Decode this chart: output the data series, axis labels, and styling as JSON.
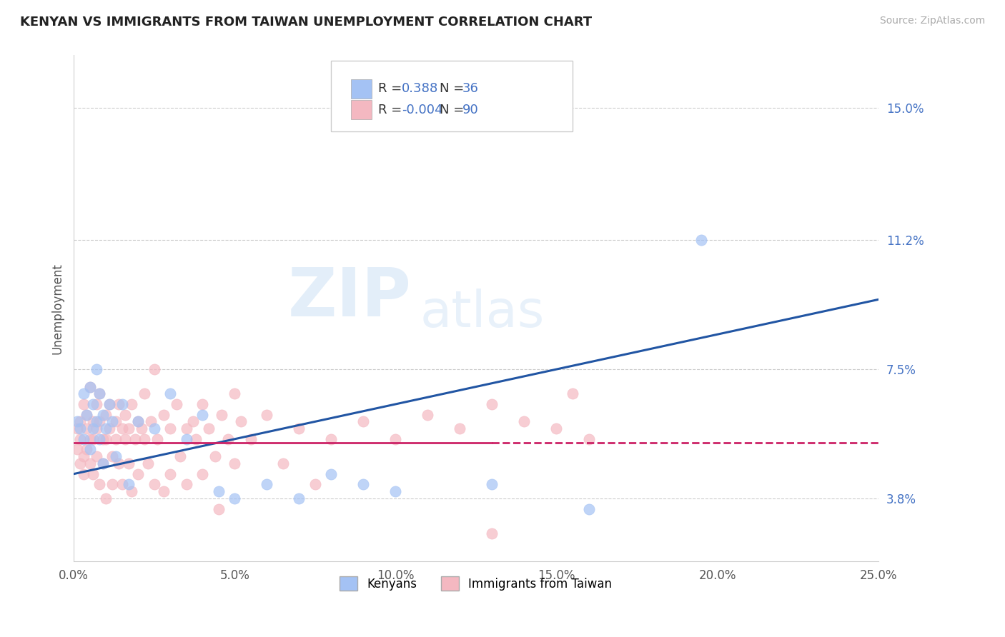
{
  "title": "KENYAN VS IMMIGRANTS FROM TAIWAN UNEMPLOYMENT CORRELATION CHART",
  "source": "Source: ZipAtlas.com",
  "ylabel": "Unemployment",
  "xlim": [
    0.0,
    0.25
  ],
  "ylim": [
    0.02,
    0.165
  ],
  "yticks": [
    0.038,
    0.075,
    0.112,
    0.15
  ],
  "ytick_labels": [
    "3.8%",
    "7.5%",
    "11.2%",
    "15.0%"
  ],
  "xticks": [
    0.0,
    0.05,
    0.1,
    0.15,
    0.2,
    0.25
  ],
  "xtick_labels": [
    "0.0%",
    "5.0%",
    "10.0%",
    "15.0%",
    "20.0%",
    "25.0%"
  ],
  "bottom_legend": [
    "Kenyans",
    "Immigrants from Taiwan"
  ],
  "blue_scatter_color": "#a4c2f4",
  "pink_scatter_color": "#f4b8c1",
  "trend_blue_color": "#2155a3",
  "trend_pink_color": "#cc2266",
  "grid_color": "#cccccc",
  "tick_color": "#4472c4",
  "title_color": "#222222",
  "legend_text_color": "#4472c4",
  "legend_R_color": "#222222",
  "blue_line_start_y": 0.045,
  "blue_line_end_y": 0.095,
  "pink_line_y": 0.054,
  "kenyan_points": [
    [
      0.001,
      0.06
    ],
    [
      0.002,
      0.058
    ],
    [
      0.003,
      0.055
    ],
    [
      0.003,
      0.068
    ],
    [
      0.004,
      0.062
    ],
    [
      0.005,
      0.07
    ],
    [
      0.005,
      0.052
    ],
    [
      0.006,
      0.058
    ],
    [
      0.006,
      0.065
    ],
    [
      0.007,
      0.06
    ],
    [
      0.007,
      0.075
    ],
    [
      0.008,
      0.055
    ],
    [
      0.008,
      0.068
    ],
    [
      0.009,
      0.062
    ],
    [
      0.009,
      0.048
    ],
    [
      0.01,
      0.058
    ],
    [
      0.011,
      0.065
    ],
    [
      0.012,
      0.06
    ],
    [
      0.013,
      0.05
    ],
    [
      0.015,
      0.065
    ],
    [
      0.017,
      0.042
    ],
    [
      0.02,
      0.06
    ],
    [
      0.025,
      0.058
    ],
    [
      0.03,
      0.068
    ],
    [
      0.035,
      0.055
    ],
    [
      0.04,
      0.062
    ],
    [
      0.045,
      0.04
    ],
    [
      0.05,
      0.038
    ],
    [
      0.06,
      0.042
    ],
    [
      0.07,
      0.038
    ],
    [
      0.08,
      0.045
    ],
    [
      0.09,
      0.042
    ],
    [
      0.1,
      0.04
    ],
    [
      0.13,
      0.042
    ],
    [
      0.16,
      0.035
    ],
    [
      0.195,
      0.112
    ]
  ],
  "taiwan_points": [
    [
      0.001,
      0.058
    ],
    [
      0.001,
      0.052
    ],
    [
      0.002,
      0.06
    ],
    [
      0.002,
      0.048
    ],
    [
      0.002,
      0.055
    ],
    [
      0.003,
      0.065
    ],
    [
      0.003,
      0.05
    ],
    [
      0.003,
      0.045
    ],
    [
      0.004,
      0.058
    ],
    [
      0.004,
      0.052
    ],
    [
      0.004,
      0.062
    ],
    [
      0.005,
      0.055
    ],
    [
      0.005,
      0.048
    ],
    [
      0.005,
      0.07
    ],
    [
      0.006,
      0.06
    ],
    [
      0.006,
      0.045
    ],
    [
      0.006,
      0.055
    ],
    [
      0.007,
      0.065
    ],
    [
      0.007,
      0.05
    ],
    [
      0.007,
      0.058
    ],
    [
      0.008,
      0.06
    ],
    [
      0.008,
      0.042
    ],
    [
      0.008,
      0.068
    ],
    [
      0.009,
      0.055
    ],
    [
      0.009,
      0.048
    ],
    [
      0.01,
      0.062
    ],
    [
      0.01,
      0.055
    ],
    [
      0.01,
      0.038
    ],
    [
      0.011,
      0.058
    ],
    [
      0.011,
      0.065
    ],
    [
      0.012,
      0.05
    ],
    [
      0.012,
      0.042
    ],
    [
      0.013,
      0.06
    ],
    [
      0.013,
      0.055
    ],
    [
      0.014,
      0.048
    ],
    [
      0.014,
      0.065
    ],
    [
      0.015,
      0.058
    ],
    [
      0.015,
      0.042
    ],
    [
      0.016,
      0.055
    ],
    [
      0.016,
      0.062
    ],
    [
      0.017,
      0.048
    ],
    [
      0.017,
      0.058
    ],
    [
      0.018,
      0.065
    ],
    [
      0.018,
      0.04
    ],
    [
      0.019,
      0.055
    ],
    [
      0.02,
      0.06
    ],
    [
      0.02,
      0.045
    ],
    [
      0.021,
      0.058
    ],
    [
      0.022,
      0.055
    ],
    [
      0.022,
      0.068
    ],
    [
      0.023,
      0.048
    ],
    [
      0.024,
      0.06
    ],
    [
      0.025,
      0.075
    ],
    [
      0.025,
      0.042
    ],
    [
      0.026,
      0.055
    ],
    [
      0.028,
      0.062
    ],
    [
      0.028,
      0.04
    ],
    [
      0.03,
      0.058
    ],
    [
      0.03,
      0.045
    ],
    [
      0.032,
      0.065
    ],
    [
      0.033,
      0.05
    ],
    [
      0.035,
      0.058
    ],
    [
      0.035,
      0.042
    ],
    [
      0.037,
      0.06
    ],
    [
      0.038,
      0.055
    ],
    [
      0.04,
      0.045
    ],
    [
      0.04,
      0.065
    ],
    [
      0.042,
      0.058
    ],
    [
      0.044,
      0.05
    ],
    [
      0.045,
      0.035
    ],
    [
      0.046,
      0.062
    ],
    [
      0.048,
      0.055
    ],
    [
      0.05,
      0.048
    ],
    [
      0.05,
      0.068
    ],
    [
      0.052,
      0.06
    ],
    [
      0.055,
      0.055
    ],
    [
      0.06,
      0.062
    ],
    [
      0.065,
      0.048
    ],
    [
      0.07,
      0.058
    ],
    [
      0.075,
      0.042
    ],
    [
      0.08,
      0.055
    ],
    [
      0.09,
      0.06
    ],
    [
      0.1,
      0.055
    ],
    [
      0.11,
      0.062
    ],
    [
      0.12,
      0.058
    ],
    [
      0.13,
      0.065
    ],
    [
      0.14,
      0.06
    ],
    [
      0.15,
      0.058
    ],
    [
      0.155,
      0.068
    ],
    [
      0.16,
      0.055
    ],
    [
      0.13,
      0.028
    ]
  ]
}
